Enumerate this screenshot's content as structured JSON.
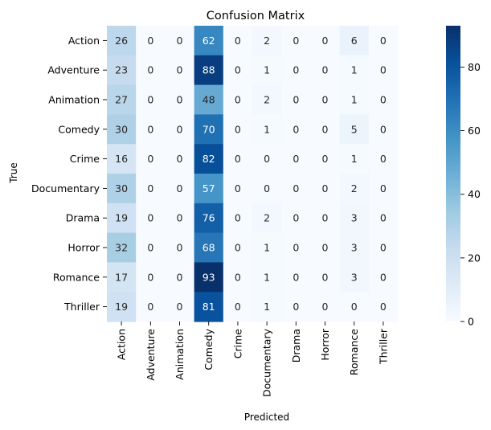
{
  "chart_data": {
    "type": "heatmap",
    "title": "Confusion Matrix",
    "xlabel": "Predicted",
    "ylabel": "True",
    "x_categories": [
      "Action",
      "Adventure",
      "Animation",
      "Comedy",
      "Crime",
      "Documentary",
      "Drama",
      "Horror",
      "Romance",
      "Thriller"
    ],
    "y_categories": [
      "Action",
      "Adventure",
      "Animation",
      "Comedy",
      "Crime",
      "Documentary",
      "Drama",
      "Horror",
      "Romance",
      "Thriller"
    ],
    "values": [
      [
        26,
        0,
        0,
        62,
        0,
        2,
        0,
        0,
        6,
        0
      ],
      [
        23,
        0,
        0,
        88,
        0,
        1,
        0,
        0,
        1,
        0
      ],
      [
        27,
        0,
        0,
        48,
        0,
        2,
        0,
        0,
        1,
        0
      ],
      [
        30,
        0,
        0,
        70,
        0,
        1,
        0,
        0,
        5,
        0
      ],
      [
        16,
        0,
        0,
        82,
        0,
        0,
        0,
        0,
        1,
        0
      ],
      [
        30,
        0,
        0,
        57,
        0,
        0,
        0,
        0,
        2,
        0
      ],
      [
        19,
        0,
        0,
        76,
        0,
        2,
        0,
        0,
        3,
        0
      ],
      [
        32,
        0,
        0,
        68,
        0,
        1,
        0,
        0,
        3,
        0
      ],
      [
        17,
        0,
        0,
        93,
        0,
        1,
        0,
        0,
        3,
        0
      ],
      [
        19,
        0,
        0,
        81,
        0,
        1,
        0,
        0,
        0,
        0
      ]
    ],
    "colormap": "Blues",
    "value_range": [
      0,
      93
    ],
    "colorbar_ticks": [
      0,
      20,
      40,
      60,
      80
    ],
    "annotations": true,
    "grid": false
  }
}
